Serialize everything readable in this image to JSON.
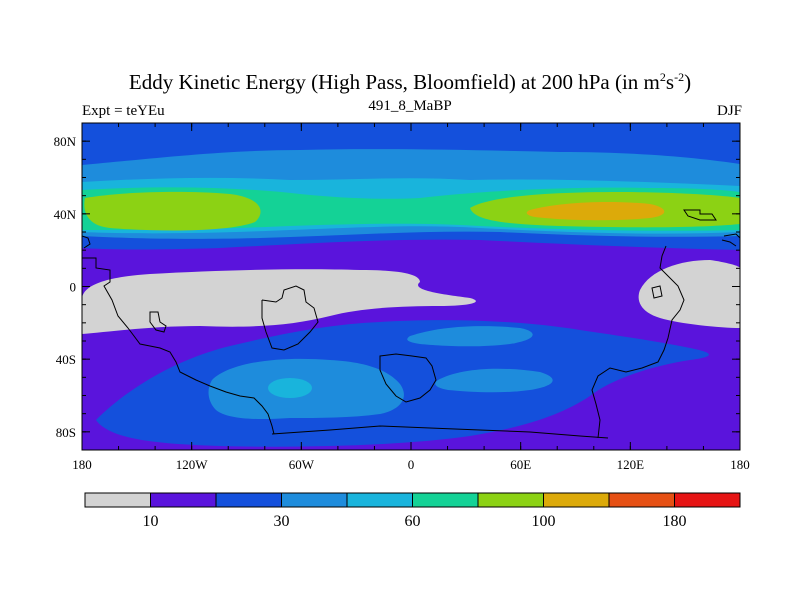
{
  "title": {
    "main": "Eddy Kinetic Energy (High Pass, Bloomfield) at 200 hPa (in m",
    "sup1": "2",
    "mid": "s",
    "sup2": "-2",
    "close": ")"
  },
  "subtitle": "491_8_MaBP",
  "left_label": "Expt = teYEu",
  "right_label": "DJF",
  "axes": {
    "x_ticks": [
      {
        "lon": -180,
        "label": "180"
      },
      {
        "lon": -120,
        "label": "120W"
      },
      {
        "lon": -60,
        "label": "60W"
      },
      {
        "lon": 0,
        "label": "0"
      },
      {
        "lon": 60,
        "label": "60E"
      },
      {
        "lon": 120,
        "label": "120E"
      },
      {
        "lon": 180,
        "label": "180"
      }
    ],
    "y_ticks": [
      {
        "lat": 80,
        "label": "80N"
      },
      {
        "lat": 40,
        "label": "40N"
      },
      {
        "lat": 0,
        "label": "0"
      },
      {
        "lat": -40,
        "label": "40S"
      },
      {
        "lat": -80,
        "label": "80S"
      }
    ],
    "lon_range": [
      -180,
      180
    ],
    "lat_range": [
      -90,
      90
    ]
  },
  "colorbar": {
    "colors": [
      "#d3d3d3",
      "#5a14dc",
      "#1450dc",
      "#1e8cdc",
      "#19b4dc",
      "#14d296",
      "#8cd214",
      "#dcaa0a",
      "#e65014",
      "#e61414"
    ],
    "labels": [
      {
        "boundary": 1,
        "label": "10"
      },
      {
        "boundary": 3,
        "label": "30"
      },
      {
        "boundary": 5,
        "label": "60"
      },
      {
        "boundary": 7,
        "label": "100"
      },
      {
        "boundary": 9,
        "label": "180"
      }
    ]
  }
}
